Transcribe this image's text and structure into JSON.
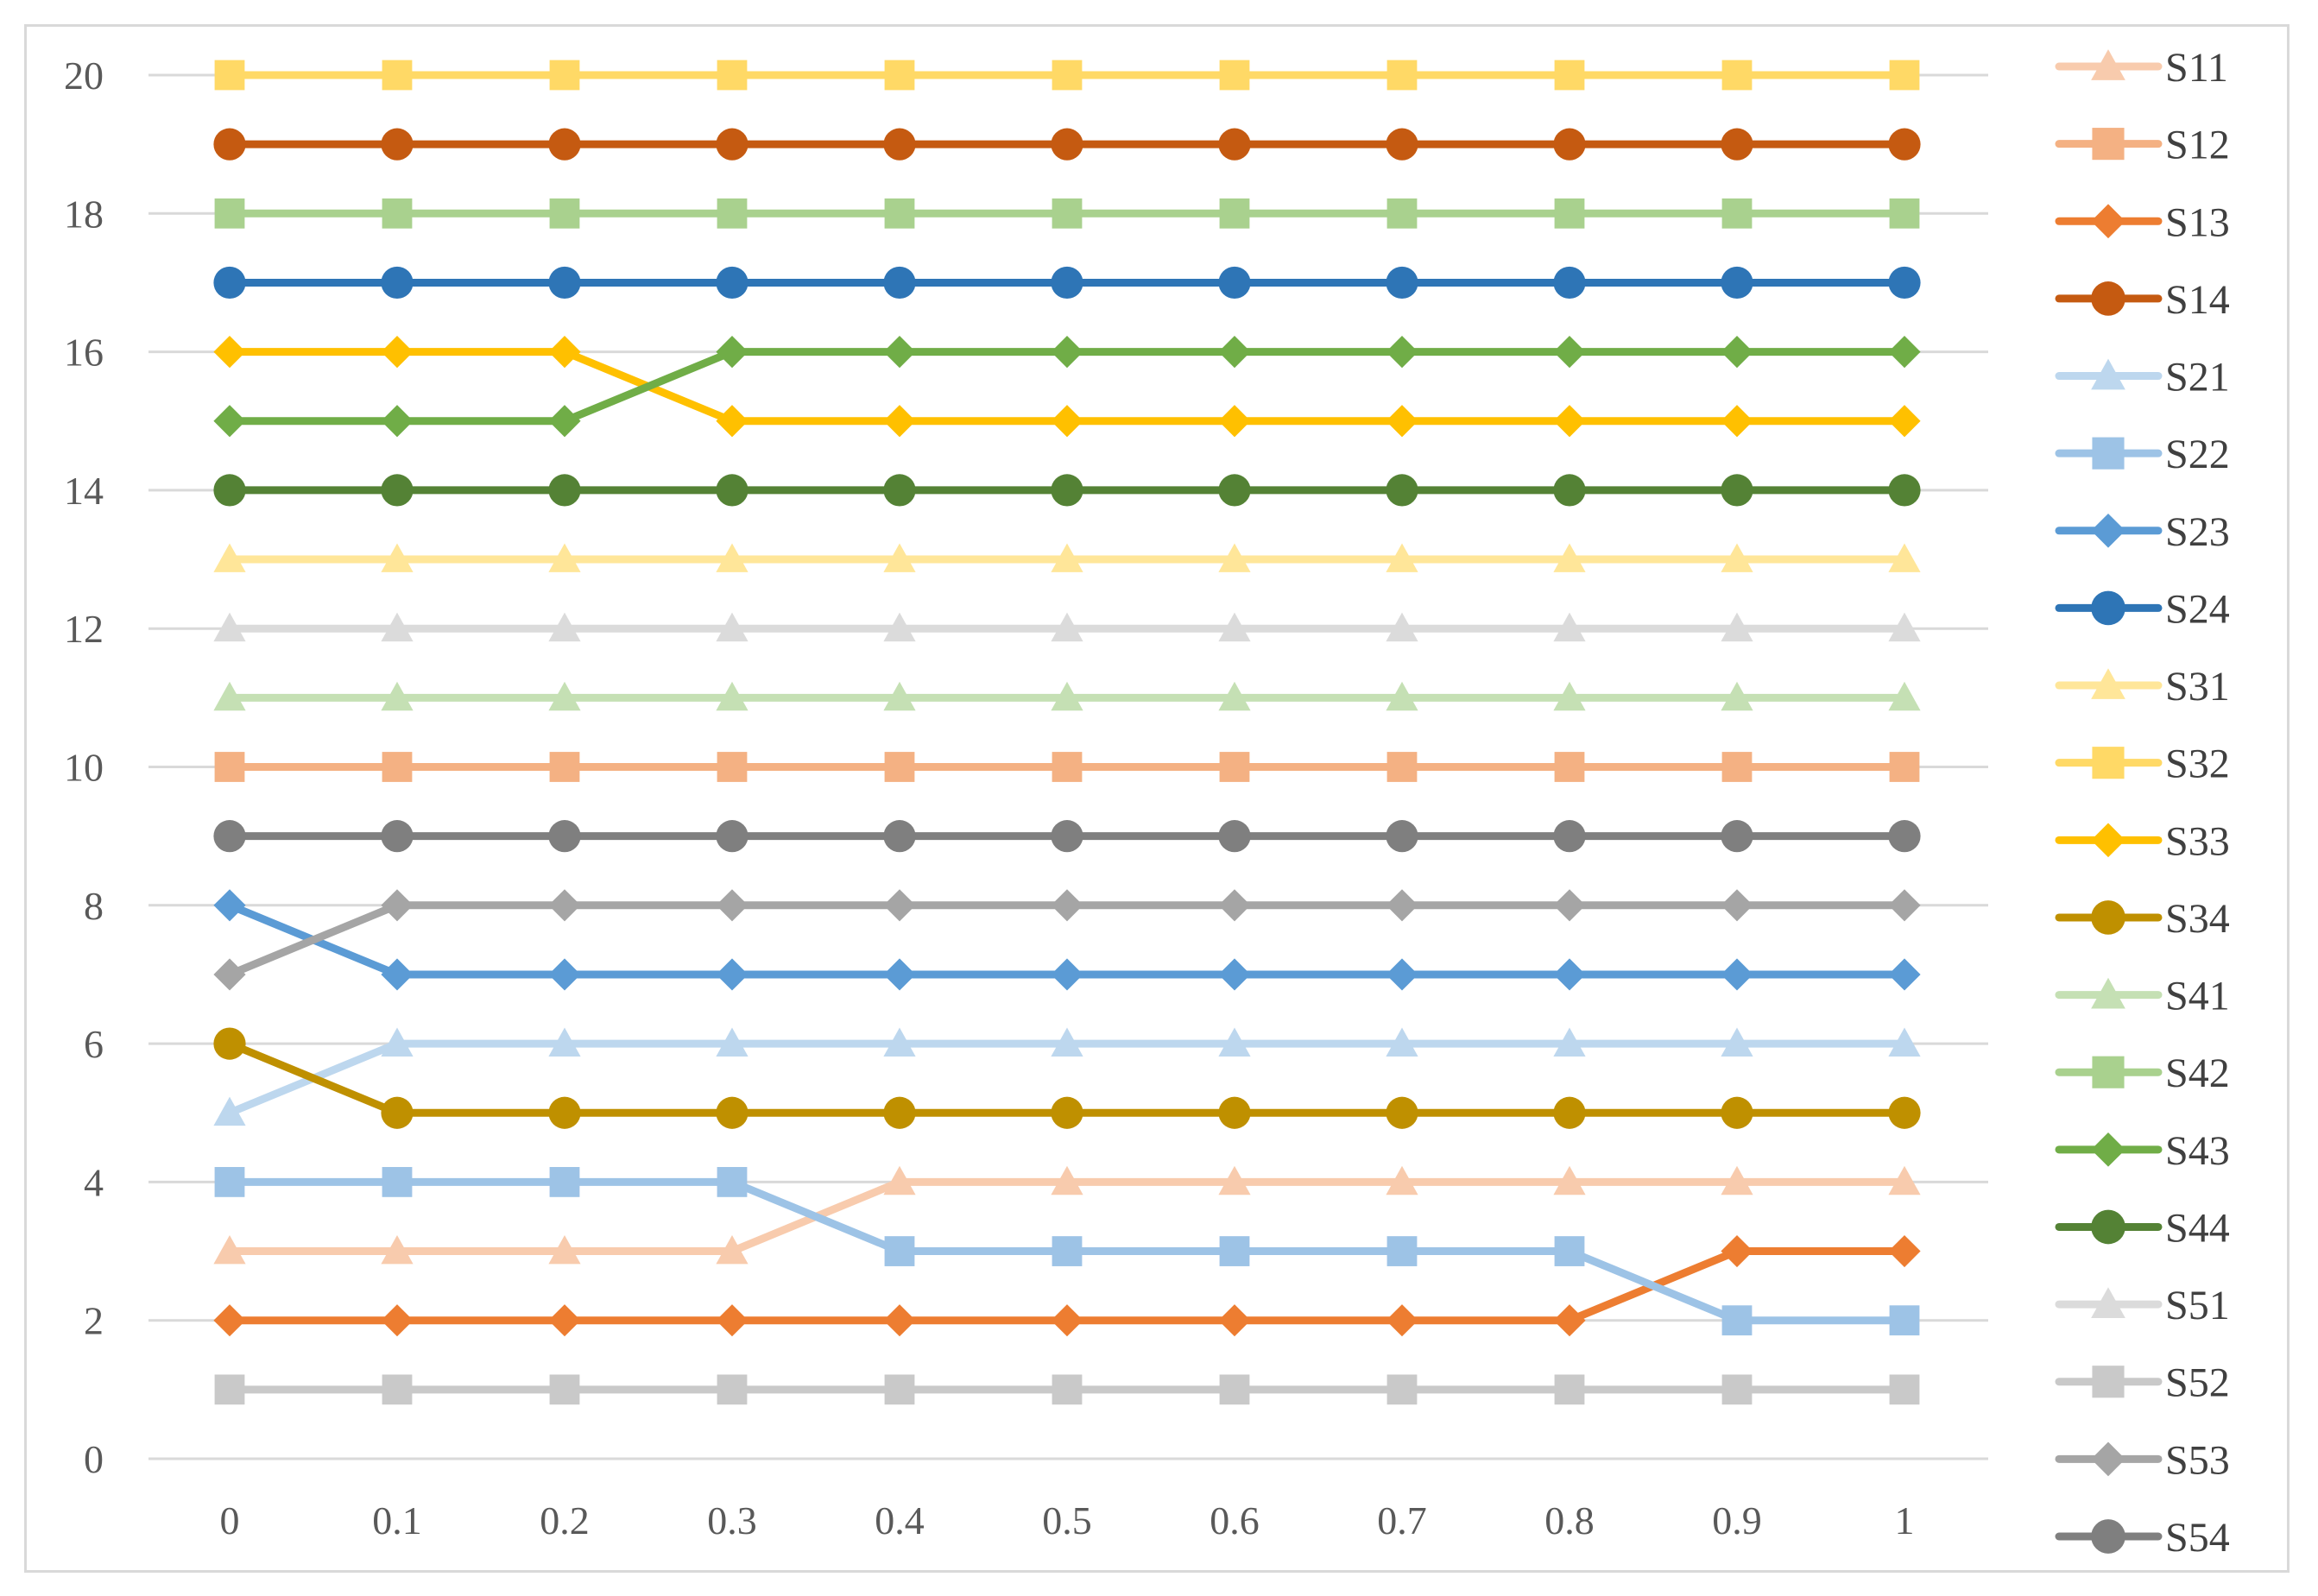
{
  "chart_data": {
    "type": "line",
    "x": [
      "0",
      "0.1",
      "0.2",
      "0.3",
      "0.4",
      "0.5",
      "0.6",
      "0.7",
      "0.8",
      "0.9",
      "1"
    ],
    "ylim": [
      0,
      20
    ],
    "yticks": [
      "0",
      "2",
      "4",
      "6",
      "8",
      "10",
      "12",
      "14",
      "16",
      "18",
      "20"
    ],
    "grid": "horizontal",
    "legend": "right",
    "series": [
      {
        "name": "S11",
        "color": "#f8cbad",
        "marker": "triangle",
        "values": [
          3,
          3,
          3,
          3,
          4,
          4,
          4,
          4,
          4,
          4,
          4
        ]
      },
      {
        "name": "S12",
        "color": "#f4b183",
        "marker": "square",
        "values": [
          10,
          10,
          10,
          10,
          10,
          10,
          10,
          10,
          10,
          10,
          10
        ]
      },
      {
        "name": "S13",
        "color": "#ed7d31",
        "marker": "diamond",
        "values": [
          2,
          2,
          2,
          2,
          2,
          2,
          2,
          2,
          2,
          3,
          3
        ]
      },
      {
        "name": "S14",
        "color": "#c55a11",
        "marker": "circle",
        "values": [
          19,
          19,
          19,
          19,
          19,
          19,
          19,
          19,
          19,
          19,
          19
        ]
      },
      {
        "name": "S21",
        "color": "#bdd7ee",
        "marker": "triangle",
        "values": [
          5,
          6,
          6,
          6,
          6,
          6,
          6,
          6,
          6,
          6,
          6
        ]
      },
      {
        "name": "S22",
        "color": "#9dc3e6",
        "marker": "square",
        "values": [
          4,
          4,
          4,
          4,
          3,
          3,
          3,
          3,
          3,
          2,
          2
        ]
      },
      {
        "name": "S23",
        "color": "#5b9bd5",
        "marker": "diamond",
        "values": [
          8,
          7,
          7,
          7,
          7,
          7,
          7,
          7,
          7,
          7,
          7
        ]
      },
      {
        "name": "S24",
        "color": "#2e75b6",
        "marker": "circle",
        "values": [
          17,
          17,
          17,
          17,
          17,
          17,
          17,
          17,
          17,
          17,
          17
        ]
      },
      {
        "name": "S31",
        "color": "#ffe699",
        "marker": "triangle",
        "values": [
          13,
          13,
          13,
          13,
          13,
          13,
          13,
          13,
          13,
          13,
          13
        ]
      },
      {
        "name": "S32",
        "color": "#ffd966",
        "marker": "square",
        "values": [
          20,
          20,
          20,
          20,
          20,
          20,
          20,
          20,
          20,
          20,
          20
        ]
      },
      {
        "name": "S33",
        "color": "#ffc000",
        "marker": "diamond",
        "values": [
          16,
          16,
          16,
          15,
          15,
          15,
          15,
          15,
          15,
          15,
          15
        ]
      },
      {
        "name": "S34",
        "color": "#bf9000",
        "marker": "circle",
        "values": [
          6,
          5,
          5,
          5,
          5,
          5,
          5,
          5,
          5,
          5,
          5
        ]
      },
      {
        "name": "S41",
        "color": "#c5e0b4",
        "marker": "triangle",
        "values": [
          11,
          11,
          11,
          11,
          11,
          11,
          11,
          11,
          11,
          11,
          11
        ]
      },
      {
        "name": "S42",
        "color": "#a9d18e",
        "marker": "square",
        "values": [
          18,
          18,
          18,
          18,
          18,
          18,
          18,
          18,
          18,
          18,
          18
        ]
      },
      {
        "name": "S43",
        "color": "#70ad47",
        "marker": "diamond",
        "values": [
          15,
          15,
          15,
          16,
          16,
          16,
          16,
          16,
          16,
          16,
          16
        ]
      },
      {
        "name": "S44",
        "color": "#548235",
        "marker": "circle",
        "values": [
          14,
          14,
          14,
          14,
          14,
          14,
          14,
          14,
          14,
          14,
          14
        ]
      },
      {
        "name": "S51",
        "color": "#dbdbdb",
        "marker": "triangle",
        "values": [
          12,
          12,
          12,
          12,
          12,
          12,
          12,
          12,
          12,
          12,
          12
        ]
      },
      {
        "name": "S52",
        "color": "#c9c9c9",
        "marker": "square",
        "values": [
          1,
          1,
          1,
          1,
          1,
          1,
          1,
          1,
          1,
          1,
          1
        ]
      },
      {
        "name": "S53",
        "color": "#a5a5a5",
        "marker": "diamond",
        "values": [
          7,
          8,
          8,
          8,
          8,
          8,
          8,
          8,
          8,
          8,
          8
        ]
      },
      {
        "name": "S54",
        "color": "#7f7f7f",
        "marker": "circle",
        "values": [
          9,
          9,
          9,
          9,
          9,
          9,
          9,
          9,
          9,
          9,
          9
        ]
      }
    ]
  }
}
